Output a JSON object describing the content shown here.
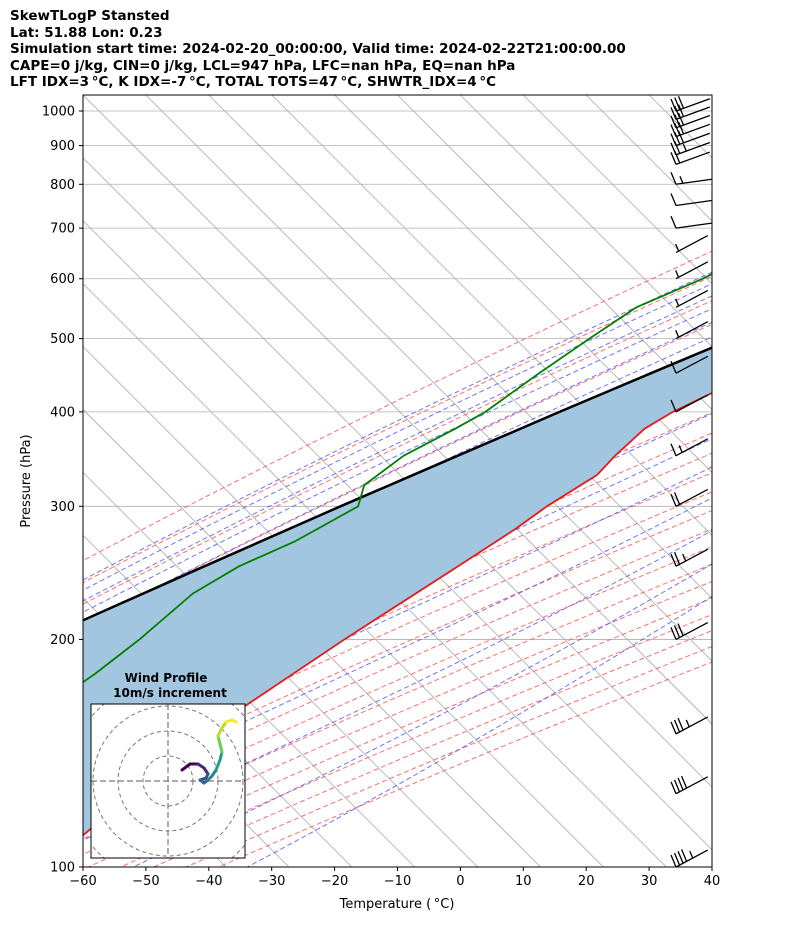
{
  "header": {
    "line1": "SkewTLogP Stansted",
    "line2": "Lat: 51.88   Lon: 0.23",
    "line3": "Simulation start time: 2024-02-20_00:00:00, Valid time: 2024-02-22T21:00:00.00",
    "line4": "CAPE=0 j/kg, CIN=0 j/kg, LCL=947 hPa, LFC=nan hPa, EQ=nan hPa",
    "line5": "LFT IDX=3 °C, K IDX=-7 °C, TOTAL TOTS=47 °C, SHWTR_IDX=4 °C"
  },
  "chart_data": {
    "type": "line",
    "subtype": "skew-t log-p",
    "xlabel": "Temperature ( °C)",
    "ylabel": "Pressure (hPa)",
    "xlim": [
      -60,
      40
    ],
    "ylim": [
      1050,
      100
    ],
    "yscale": "log",
    "skew_deg": 45,
    "grid": true,
    "x_ticks": [
      -60,
      -50,
      -40,
      -30,
      -20,
      -10,
      0,
      10,
      20,
      30,
      40
    ],
    "x_tick_labels": [
      "−60",
      "−50",
      "−40",
      "−30",
      "−20",
      "−10",
      "0",
      "10",
      "20",
      "30",
      "40"
    ],
    "y_ticks": [
      1000,
      900,
      800,
      700,
      600,
      500,
      400,
      300,
      200,
      100
    ],
    "y_tick_labels": [
      "1000",
      "900",
      "800",
      "700",
      "600",
      "500",
      "400",
      "300",
      "200",
      "100"
    ],
    "colors": {
      "temperature": "#e31a1c",
      "dewpoint": "#008000",
      "parcel": "#000000",
      "shade": "#a3c6e0",
      "dry_adiabat": "#ff5555",
      "moist_adiabat": "#4d4dff",
      "mixing_ratio": "#9933cc",
      "isotherm": "#aaaaaa"
    },
    "series": [
      {
        "key": "temperature",
        "pressure": [
          970,
          950,
          925,
          900,
          850,
          800,
          750,
          700,
          650,
          600,
          550,
          500,
          450,
          400,
          380,
          350,
          330,
          300,
          280,
          250,
          200,
          150,
          100
        ],
        "values": [
          5.0,
          5.6,
          5.6,
          4.8,
          1.8,
          -1.4,
          -4.8,
          -8.6,
          -12.6,
          -16.8,
          -21.4,
          -26.4,
          -32.0,
          -38.6,
          -40.4,
          -40.8,
          -40.6,
          -43.6,
          -45.0,
          -48.2,
          -54.6,
          -62.0,
          -66.0
        ]
      },
      {
        "key": "dewpoint",
        "pressure": [
          970,
          950,
          925,
          900,
          870,
          850,
          800,
          750,
          700,
          650,
          600,
          550,
          500,
          450,
          400,
          380,
          350,
          320,
          300,
          270,
          250,
          230,
          200,
          180,
          150,
          100
        ],
        "values": [
          2.0,
          2.0,
          -5.0,
          -18.0,
          -26.0,
          -31.0,
          -46.0,
          -50.0,
          -50.0,
          -51.0,
          -55.0,
          -61.0,
          -63.5,
          -66.0,
          -68.4,
          -70.5,
          -74.4,
          -76.0,
          -73.6,
          -78.0,
          -83.0,
          -86.0,
          -87.2,
          -88.8,
          -93.0,
          -105.0
        ]
      },
      {
        "key": "parcel",
        "pressure": [
          970,
          947,
          925,
          900,
          850,
          800,
          750,
          700,
          650,
          600,
          550,
          500,
          450,
          400,
          350,
          300,
          250,
          200,
          150,
          100
        ],
        "values": [
          3.4,
          2.5,
          1.0,
          -0.8,
          -4.2,
          -8.2,
          -12.4,
          -17.0,
          -22.0,
          -27.6,
          -33.8,
          -40.6,
          -48.2,
          -56.6,
          -65.8,
          -76.4,
          -88.5,
          -103.0,
          -121.0,
          -144.0
        ]
      }
    ],
    "wind_barbs": {
      "pressure": [
        1000,
        975,
        950,
        925,
        900,
        875,
        850,
        800,
        750,
        700,
        650,
        600,
        550,
        500,
        450,
        400,
        350,
        300,
        250,
        200,
        150,
        125,
        100
      ],
      "knots": [
        30,
        30,
        30,
        30,
        30,
        25,
        20,
        15,
        10,
        10,
        5,
        5,
        5,
        5,
        10,
        10,
        15,
        20,
        25,
        30,
        35,
        40,
        45
      ]
    },
    "hodograph": {
      "title": "Wind Profile",
      "subtitle": "10m/s increment"
    }
  }
}
